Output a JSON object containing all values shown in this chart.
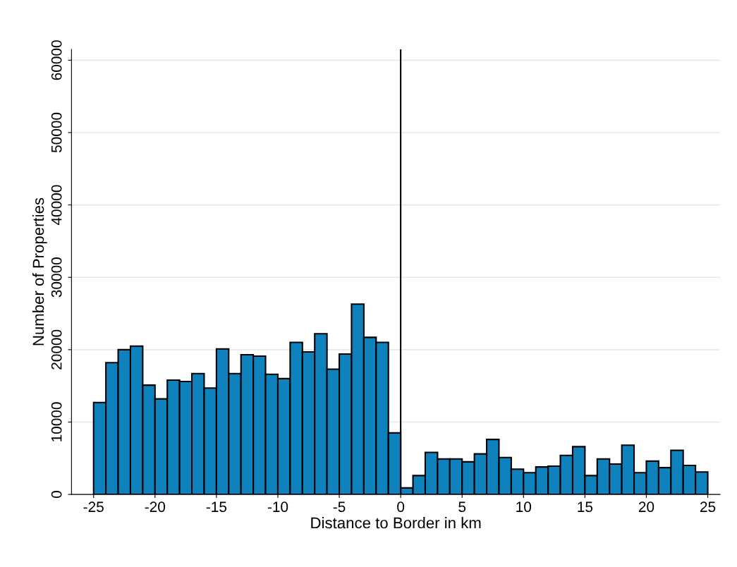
{
  "chart_data": {
    "type": "histogram",
    "xlabel": "Distance to Border in km",
    "ylabel": "Number of Properties",
    "bins": [
      -25,
      -24,
      -23,
      -22,
      -21,
      -20,
      -19,
      -18,
      -17,
      -16,
      -15,
      -14,
      -13,
      -12,
      -11,
      -10,
      -9,
      -8,
      -7,
      -6,
      -5,
      -4,
      -3,
      -2,
      -1,
      0,
      1,
      2,
      3,
      4,
      5,
      6,
      7,
      8,
      9,
      10,
      11,
      12,
      13,
      14,
      15,
      16,
      17,
      18,
      19,
      20,
      21,
      22,
      23,
      24,
      25
    ],
    "values": [
      12700,
      18200,
      20000,
      20500,
      15100,
      13200,
      15800,
      15600,
      16700,
      14700,
      20100,
      16700,
      19300,
      19100,
      16600,
      16000,
      21000,
      19700,
      22200,
      17300,
      19400,
      26300,
      21700,
      21000,
      8500,
      900,
      2600,
      5800,
      4900,
      4900,
      4500,
      5600,
      7600,
      5100,
      3500,
      3000,
      3800,
      3900,
      5400,
      6600,
      2600,
      4900,
      4200,
      6800,
      3000,
      4600,
      3700,
      6100,
      4000,
      3100
    ],
    "color": "#0f82be",
    "xlim": [
      -26.8,
      26
    ],
    "ylim": [
      0,
      61500
    ],
    "xticks": [
      -25,
      -20,
      -15,
      -10,
      -5,
      0,
      5,
      10,
      15,
      20,
      25
    ],
    "yticks": [
      0,
      10000,
      20000,
      30000,
      40000,
      50000,
      60000
    ],
    "grid": "y",
    "ref_lines": [
      {
        "axis": "x",
        "value": 0,
        "color": "#000000"
      }
    ]
  }
}
